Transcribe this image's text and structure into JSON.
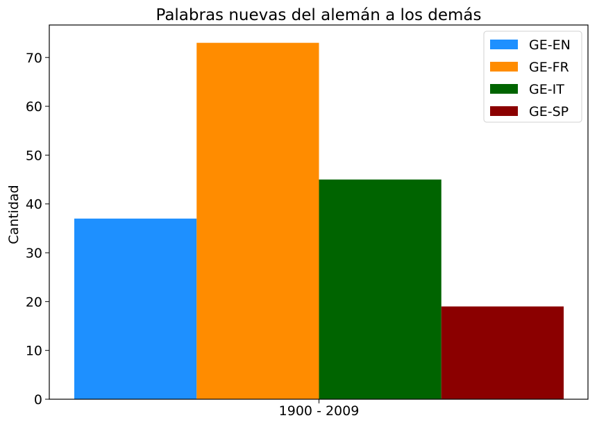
{
  "chart_data": {
    "type": "bar",
    "title": "Palabras nuevas del alemán a los demás",
    "xlabel": "",
    "ylabel": "Cantidad",
    "categories": [
      "1900 - 2009"
    ],
    "series": [
      {
        "name": "GE-EN",
        "values": [
          37
        ],
        "color": "#1E90FF"
      },
      {
        "name": "GE-FR",
        "values": [
          73
        ],
        "color": "#FF8C00"
      },
      {
        "name": "GE-IT",
        "values": [
          45
        ],
        "color": "#006400"
      },
      {
        "name": "GE-SP",
        "values": [
          19
        ],
        "color": "#8B0000"
      }
    ],
    "ylim": [
      0,
      76.65
    ],
    "yticks": [
      0,
      10,
      20,
      30,
      40,
      50,
      60,
      70
    ],
    "grid": false,
    "legend": "top-right"
  }
}
